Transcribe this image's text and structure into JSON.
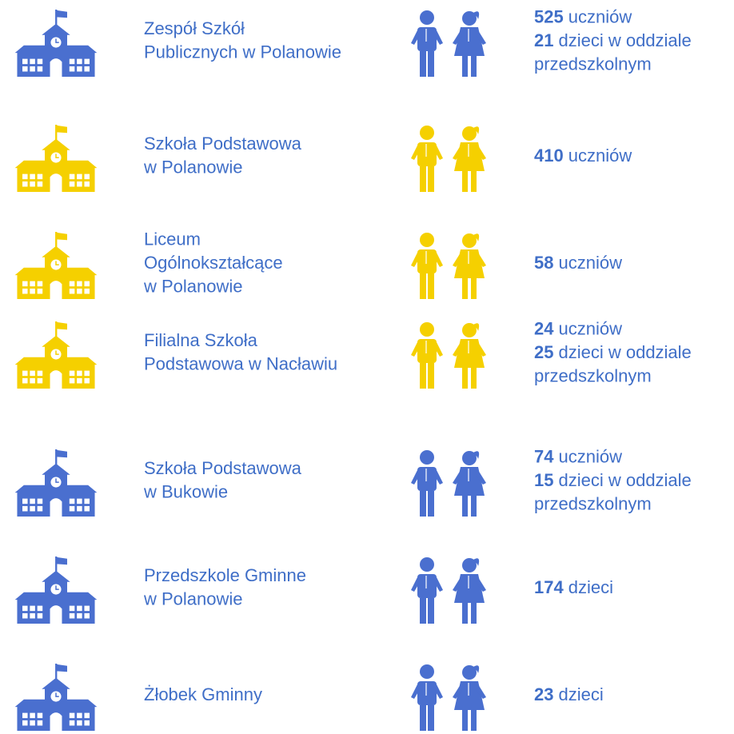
{
  "rows": [
    {
      "color": "#4a6fcf",
      "name": [
        "Zespół Szkół",
        "Publicznych w Polanowie"
      ],
      "stats": [
        {
          "number": 525,
          "text": "uczniów"
        },
        {
          "number": 21,
          "text": "dzieci w oddziale"
        },
        {
          "text": "przedszkolnym"
        }
      ]
    },
    {
      "color": "#f5d000",
      "name": [
        "Szkoła Podstawowa",
        "w Polanowie"
      ],
      "stats": [
        {
          "number": 410,
          "text": "uczniów"
        }
      ]
    },
    {
      "color": "#f5d000",
      "name": [
        "Liceum",
        "Ogólnokształcące",
        "w Polanowie"
      ],
      "stats": [
        {
          "number": 58,
          "text": "uczniów"
        }
      ]
    },
    {
      "color": "#f5d000",
      "name": [
        "Filialna Szkoła",
        "Podstawowa w Nacławiu"
      ],
      "stats": [
        {
          "number": 24,
          "text": "uczniów"
        },
        {
          "number": 25,
          "text": "dzieci w oddziale"
        },
        {
          "text": "przedszkolnym"
        }
      ]
    },
    {
      "color": "#4a6fcf",
      "name": [
        "Szkoła Podstawowa",
        "w Bukowie"
      ],
      "stats": [
        {
          "number": 74,
          "text": "uczniów"
        },
        {
          "number": 15,
          "text": "dzieci w oddziale"
        },
        {
          "text": "przedszkolnym"
        }
      ]
    },
    {
      "color": "#4a6fcf",
      "name": [
        "Przedszkole Gminne",
        "w Polanowie"
      ],
      "stats": [
        {
          "number": 174,
          "text": "dzieci"
        }
      ]
    },
    {
      "color": "#4a6fcf",
      "name": [
        "Żłobek Gminny"
      ],
      "stats": [
        {
          "number": 23,
          "text": "dzieci"
        }
      ]
    }
  ]
}
